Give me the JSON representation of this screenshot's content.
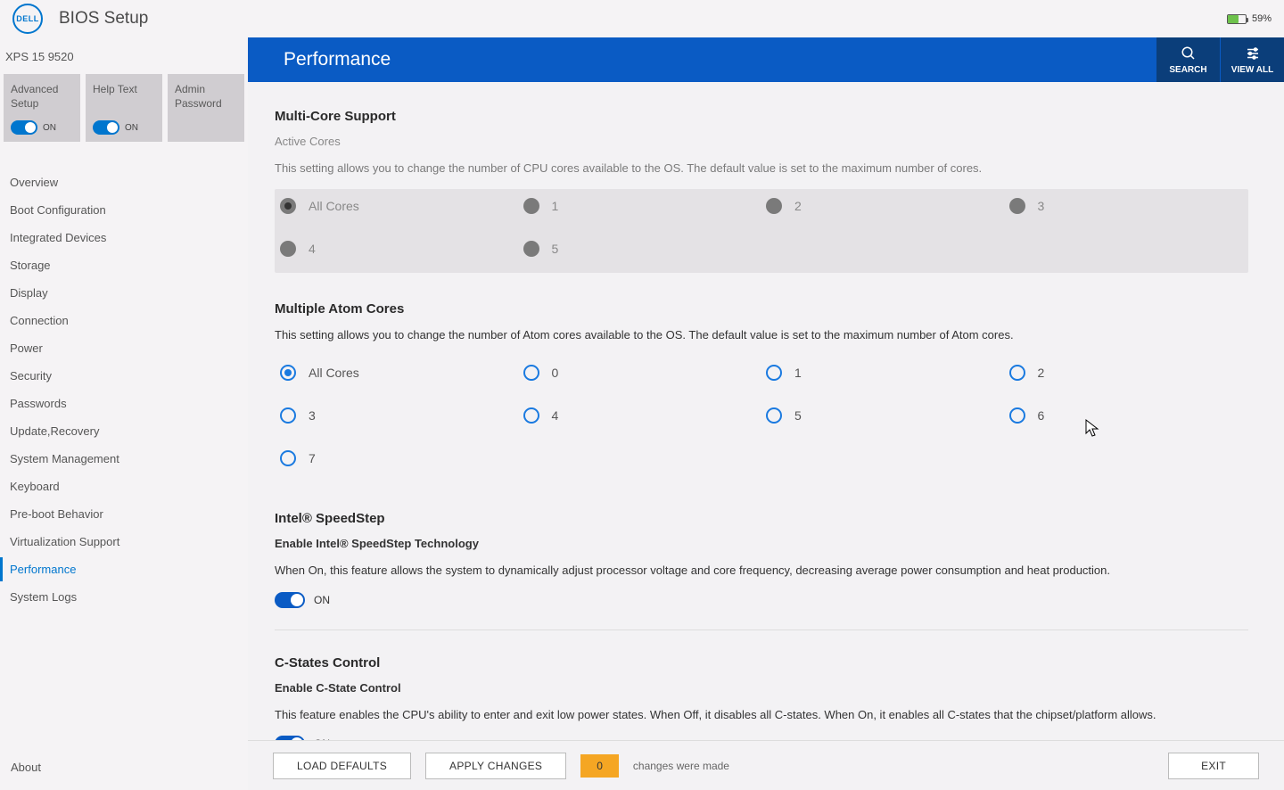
{
  "top": {
    "logo_text": "DELL",
    "title": "BIOS Setup",
    "battery_pct": "59%"
  },
  "device_name": "XPS 15 9520",
  "tiles": {
    "adv": {
      "title": "Advanced Setup",
      "state": "ON"
    },
    "help": {
      "title": "Help Text",
      "state": "ON"
    },
    "admin": {
      "title": "Admin Password"
    }
  },
  "nav": [
    "Overview",
    "Boot Configuration",
    "Integrated Devices",
    "Storage",
    "Display",
    "Connection",
    "Power",
    "Security",
    "Passwords",
    "Update,Recovery",
    "System Management",
    "Keyboard",
    "Pre-boot Behavior",
    "Virtualization Support",
    "Performance",
    "System Logs"
  ],
  "nav_active_index": 14,
  "page_title": "Performance",
  "header_actions": {
    "search": "SEARCH",
    "viewall": "VIEW ALL"
  },
  "multicore": {
    "heading": "Multi-Core Support",
    "subheading": "Active Cores",
    "desc": "This setting allows you to change the number of CPU cores available to the OS. The default value is set to the maximum number of cores.",
    "options": [
      "All Cores",
      "1",
      "2",
      "3",
      "4",
      "5"
    ],
    "selected": "All Cores"
  },
  "atom": {
    "heading": "Multiple Atom Cores",
    "desc": "This setting allows you to change the number of Atom cores available to the OS. The default value is set to the maximum number of Atom cores.",
    "options": [
      "All Cores",
      "0",
      "1",
      "2",
      "3",
      "4",
      "5",
      "6",
      "7"
    ],
    "selected": "All Cores"
  },
  "speedstep": {
    "heading": "Intel® SpeedStep",
    "subheading": "Enable Intel® SpeedStep Technology",
    "desc": "When On, this feature allows the system to dynamically adjust processor voltage and core frequency, decreasing average power consumption and heat production.",
    "state": "ON"
  },
  "cstates": {
    "heading": "C-States Control",
    "subheading": "Enable C-State Control",
    "desc": "This feature enables the CPU's ability to enter and exit low power states. When Off, it disables all C-states. When On, it enables all C-states that the chipset/platform allows.",
    "state": "ON"
  },
  "footer": {
    "load_defaults": "LOAD DEFAULTS",
    "apply": "APPLY CHANGES",
    "changes_count": "0",
    "changes_text": "changes were made",
    "exit": "EXIT"
  },
  "about": "About"
}
